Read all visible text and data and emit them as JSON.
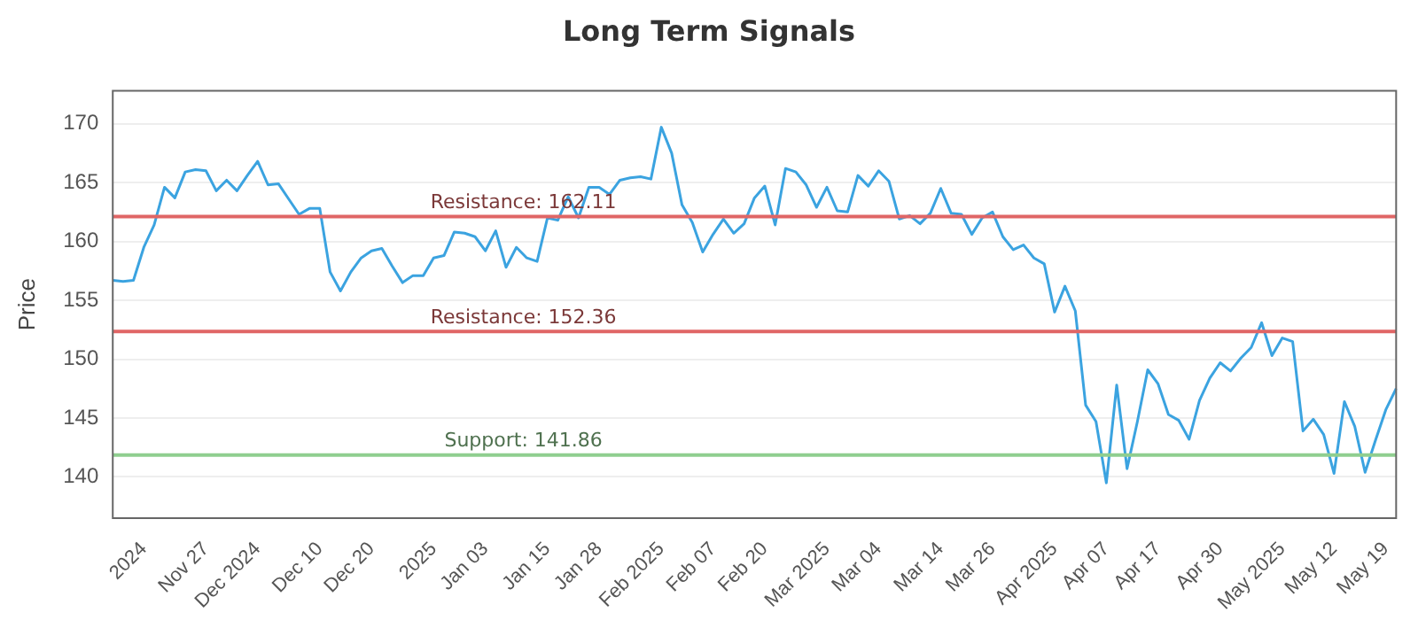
{
  "chart_data": {
    "type": "line",
    "title": "Long Term Signals",
    "ylabel": "Price",
    "categories": [
      null,
      null,
      null,
      "2024",
      null,
      null,
      null,
      null,
      null,
      "Nov 27",
      null,
      null,
      null,
      null,
      "Dec 2024",
      null,
      null,
      null,
      null,
      null,
      "Dec 10",
      null,
      null,
      null,
      null,
      "Dec 20",
      null,
      null,
      null,
      null,
      null,
      "2025",
      null,
      null,
      null,
      null,
      "Jan 03",
      null,
      null,
      null,
      null,
      null,
      "Jan 15",
      null,
      null,
      null,
      null,
      "Jan 28",
      null,
      null,
      null,
      null,
      null,
      "Feb 2025",
      null,
      null,
      null,
      null,
      "Feb 07",
      null,
      null,
      null,
      null,
      "Feb 20",
      null,
      null,
      null,
      null,
      null,
      "Mar 2025",
      null,
      null,
      null,
      null,
      "Mar 04",
      null,
      null,
      null,
      null,
      null,
      "Mar 14",
      null,
      null,
      null,
      null,
      "Mar 26",
      null,
      null,
      null,
      null,
      null,
      "Apr 2025",
      null,
      null,
      null,
      null,
      "Apr 07",
      null,
      null,
      null,
      null,
      "Apr 17",
      null,
      null,
      null,
      null,
      null,
      "Apr 30",
      null,
      null,
      null,
      null,
      null,
      "May 2025",
      null,
      null,
      null,
      null,
      "May 12",
      null,
      null,
      null,
      null,
      "May 19",
      null
    ],
    "series": [
      {
        "color": "#3ba3e0",
        "values": [
          156.7,
          156.6,
          156.7,
          159.5,
          161.4,
          164.6,
          163.7,
          165.9,
          166.1,
          166.0,
          164.3,
          165.2,
          164.3,
          165.6,
          166.8,
          164.8,
          164.9,
          163.6,
          162.3,
          162.8,
          162.8,
          157.4,
          155.8,
          157.4,
          158.6,
          159.2,
          159.4,
          157.9,
          156.5,
          157.1,
          157.1,
          158.6,
          158.8,
          160.8,
          160.7,
          160.4,
          159.2,
          160.9,
          157.8,
          159.5,
          158.6,
          158.3,
          162.0,
          161.8,
          163.8,
          162.0,
          164.6,
          164.6,
          164.0,
          165.2,
          165.4,
          165.5,
          165.3,
          169.7,
          167.5,
          163.1,
          161.6,
          159.1,
          160.6,
          161.9,
          160.7,
          161.5,
          163.7,
          164.7,
          161.4,
          166.2,
          165.9,
          164.8,
          162.9,
          164.6,
          162.6,
          162.5,
          165.6,
          164.7,
          166.0,
          165.1,
          161.9,
          162.2,
          161.5,
          162.4,
          164.5,
          162.4,
          162.3,
          160.6,
          162.0,
          162.5,
          160.4,
          159.3,
          159.7,
          158.6,
          158.1,
          154.0,
          156.2,
          154.1,
          146.1,
          144.7,
          139.5,
          147.8,
          140.7,
          144.7,
          149.1,
          147.9,
          145.3,
          144.8,
          143.2,
          146.5,
          148.4,
          149.7,
          149.0,
          150.1,
          151.0,
          153.1,
          150.3,
          151.8,
          151.5,
          143.9,
          144.9,
          143.6,
          140.3,
          146.4,
          144.3,
          140.4,
          143.1,
          145.7,
          147.5
        ]
      }
    ],
    "ylim": [
      136.5,
      172.8
    ],
    "yticks": [
      140,
      145,
      150,
      155,
      160,
      165,
      170
    ],
    "grid": "y",
    "legend": false,
    "marker": "none",
    "line_style": "solid",
    "ref_lines": [
      {
        "axis": "y",
        "value": 162.11,
        "label": "Resistance: 162.11",
        "color": "#e06666"
      },
      {
        "axis": "y",
        "value": 152.36,
        "label": "Resistance: 152.36",
        "color": "#e06666"
      },
      {
        "axis": "y",
        "value": 141.86,
        "label": "Support: 141.86",
        "color": "#8fce8f"
      }
    ]
  }
}
